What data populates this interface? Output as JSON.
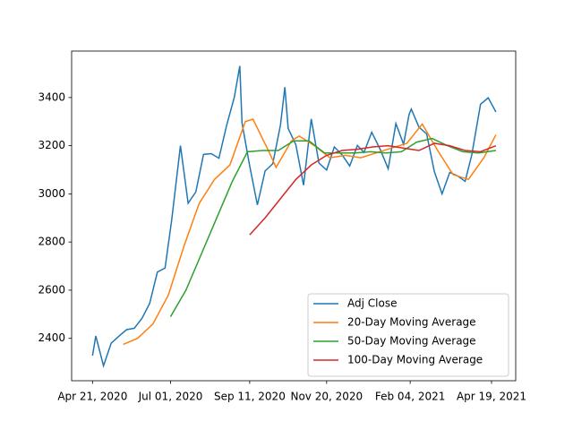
{
  "chart_data": {
    "type": "line",
    "xlim": [
      "2020-04-02",
      "2021-05-11"
    ],
    "ylim": [
      2224,
      3593
    ],
    "xticks": [
      {
        "value": "2020-04-21",
        "label": "Apr 21, 2020"
      },
      {
        "value": "2020-07-01",
        "label": "Jul 01, 2020"
      },
      {
        "value": "2020-09-11",
        "label": "Sep 11, 2020"
      },
      {
        "value": "2020-11-20",
        "label": "Nov 20, 2020"
      },
      {
        "value": "2021-02-04",
        "label": "Feb 04, 2021"
      },
      {
        "value": "2021-04-19",
        "label": "Apr 19, 2021"
      }
    ],
    "yticks": [
      2400,
      2600,
      2800,
      3000,
      3200,
      3400
    ],
    "legend": "lower right",
    "series": [
      {
        "name": "Adj Close",
        "color": "#1f77b4",
        "x": [
          "2020-04-21",
          "2020-04-24",
          "2020-05-01",
          "2020-05-08",
          "2020-05-15",
          "2020-05-22",
          "2020-05-29",
          "2020-06-05",
          "2020-06-12",
          "2020-06-19",
          "2020-06-26",
          "2020-07-02",
          "2020-07-10",
          "2020-07-17",
          "2020-07-24",
          "2020-07-31",
          "2020-08-07",
          "2020-08-14",
          "2020-08-21",
          "2020-08-28",
          "2020-09-02",
          "2020-09-04",
          "2020-09-11",
          "2020-09-18",
          "2020-09-25",
          "2020-10-02",
          "2020-10-09",
          "2020-10-13",
          "2020-10-16",
          "2020-10-23",
          "2020-10-30",
          "2020-11-06",
          "2020-11-13",
          "2020-11-20",
          "2020-11-27",
          "2020-12-04",
          "2020-12-11",
          "2020-12-18",
          "2020-12-24",
          "2020-12-31",
          "2021-01-08",
          "2021-01-15",
          "2021-01-22",
          "2021-01-29",
          "2021-02-03",
          "2021-02-05",
          "2021-02-12",
          "2021-02-19",
          "2021-02-26",
          "2021-03-05",
          "2021-03-12",
          "2021-03-19",
          "2021-03-26",
          "2021-04-01",
          "2021-04-09",
          "2021-04-16",
          "2021-04-23"
        ],
        "values": [
          2328,
          2410,
          2286,
          2380,
          2409,
          2436,
          2442,
          2483,
          2545,
          2675,
          2692,
          2890,
          3200,
          2961,
          3008,
          3164,
          3167,
          3148,
          3284,
          3401,
          3531,
          3295,
          3116,
          2954,
          3095,
          3125,
          3286,
          3443,
          3272,
          3204,
          3036,
          3311,
          3128,
          3099,
          3195,
          3162,
          3116,
          3201,
          3172,
          3256,
          3182,
          3104,
          3292,
          3206,
          3330,
          3352,
          3277,
          3249,
          3092,
          3000,
          3089,
          3075,
          3052,
          3161,
          3372,
          3399,
          3340
        ]
      },
      {
        "name": "20-Day Moving Average",
        "color": "#ff7f0e",
        "x": [
          "2020-05-19",
          "2020-06-01",
          "2020-06-15",
          "2020-06-29",
          "2020-07-13",
          "2020-07-27",
          "2020-08-10",
          "2020-08-24",
          "2020-09-07",
          "2020-09-14",
          "2020-09-28",
          "2020-10-05",
          "2020-10-19",
          "2020-10-26",
          "2020-11-09",
          "2020-11-23",
          "2020-12-07",
          "2020-12-21",
          "2021-01-04",
          "2021-01-18",
          "2021-02-01",
          "2021-02-15",
          "2021-03-01",
          "2021-03-15",
          "2021-03-29",
          "2021-04-12",
          "2021-04-23"
        ],
        "values": [
          2375,
          2400,
          2460,
          2580,
          2780,
          2960,
          3060,
          3120,
          3300,
          3310,
          3180,
          3110,
          3220,
          3240,
          3200,
          3150,
          3160,
          3150,
          3170,
          3190,
          3210,
          3290,
          3180,
          3080,
          3060,
          3150,
          3245
        ]
      },
      {
        "name": "50-Day Moving Average",
        "color": "#2ca02c",
        "x": [
          "2020-07-01",
          "2020-07-15",
          "2020-07-29",
          "2020-08-12",
          "2020-08-26",
          "2020-09-09",
          "2020-09-23",
          "2020-10-07",
          "2020-10-21",
          "2020-11-04",
          "2020-11-18",
          "2020-12-02",
          "2020-12-16",
          "2020-12-30",
          "2021-01-13",
          "2021-01-27",
          "2021-02-10",
          "2021-02-24",
          "2021-03-10",
          "2021-03-24",
          "2021-04-07",
          "2021-04-23"
        ],
        "values": [
          2490,
          2600,
          2750,
          2900,
          3050,
          3175,
          3180,
          3180,
          3220,
          3220,
          3170,
          3170,
          3170,
          3175,
          3170,
          3175,
          3215,
          3230,
          3200,
          3175,
          3170,
          3180
        ]
      },
      {
        "name": "100-Day Moving Average",
        "color": "#d62728",
        "x": [
          "2020-09-11",
          "2020-09-25",
          "2020-10-09",
          "2020-10-23",
          "2020-11-06",
          "2020-11-20",
          "2020-12-04",
          "2020-12-18",
          "2021-01-01",
          "2021-01-15",
          "2021-01-29",
          "2021-02-12",
          "2021-02-26",
          "2021-03-12",
          "2021-03-26",
          "2021-04-09",
          "2021-04-23"
        ],
        "values": [
          2830,
          2900,
          2980,
          3060,
          3120,
          3160,
          3180,
          3185,
          3195,
          3200,
          3190,
          3180,
          3210,
          3200,
          3180,
          3175,
          3200
        ]
      }
    ]
  }
}
